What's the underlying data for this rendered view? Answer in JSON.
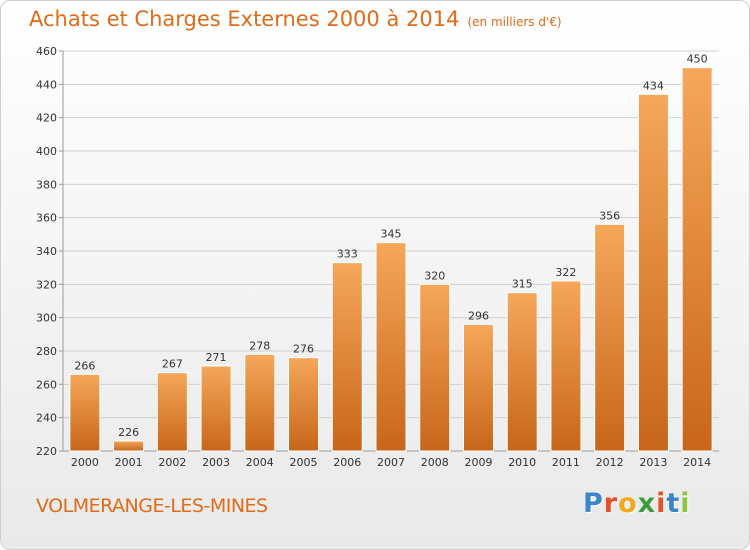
{
  "title": {
    "main": "Achats et Charges Externes 2000 à 2014",
    "unit": "(en milliers d'€)"
  },
  "commune": "VOLMERANGE-LES-MINES",
  "brand": {
    "text": "Proxiti",
    "letters": [
      {
        "char": "P",
        "color": "#3a86c8"
      },
      {
        "char": "r",
        "color": "#e8502a"
      },
      {
        "char": "o",
        "color": "#f0a81e"
      },
      {
        "char": "x",
        "color": "#3a9c3a"
      },
      {
        "char": "i",
        "color": "#e8502a"
      },
      {
        "char": "t",
        "color": "#3a86c8"
      },
      {
        "char": "i",
        "color": "#8dc63f"
      }
    ]
  },
  "colors": {
    "title": "#e06c18",
    "bar_top": "#f5a75a",
    "bar_bottom": "#c8661a",
    "grid": "#d0d0d0"
  },
  "chart_data": {
    "type": "bar",
    "categories": [
      "2000",
      "2001",
      "2002",
      "2003",
      "2004",
      "2005",
      "2006",
      "2007",
      "2008",
      "2009",
      "2010",
      "2011",
      "2012",
      "2013",
      "2014"
    ],
    "values": [
      266,
      226,
      267,
      271,
      278,
      276,
      333,
      345,
      320,
      296,
      315,
      322,
      356,
      434,
      450
    ],
    "ylim": [
      220,
      460
    ],
    "yticks": [
      220,
      240,
      260,
      280,
      300,
      320,
      340,
      360,
      380,
      400,
      420,
      440,
      460
    ],
    "grid": true
  }
}
